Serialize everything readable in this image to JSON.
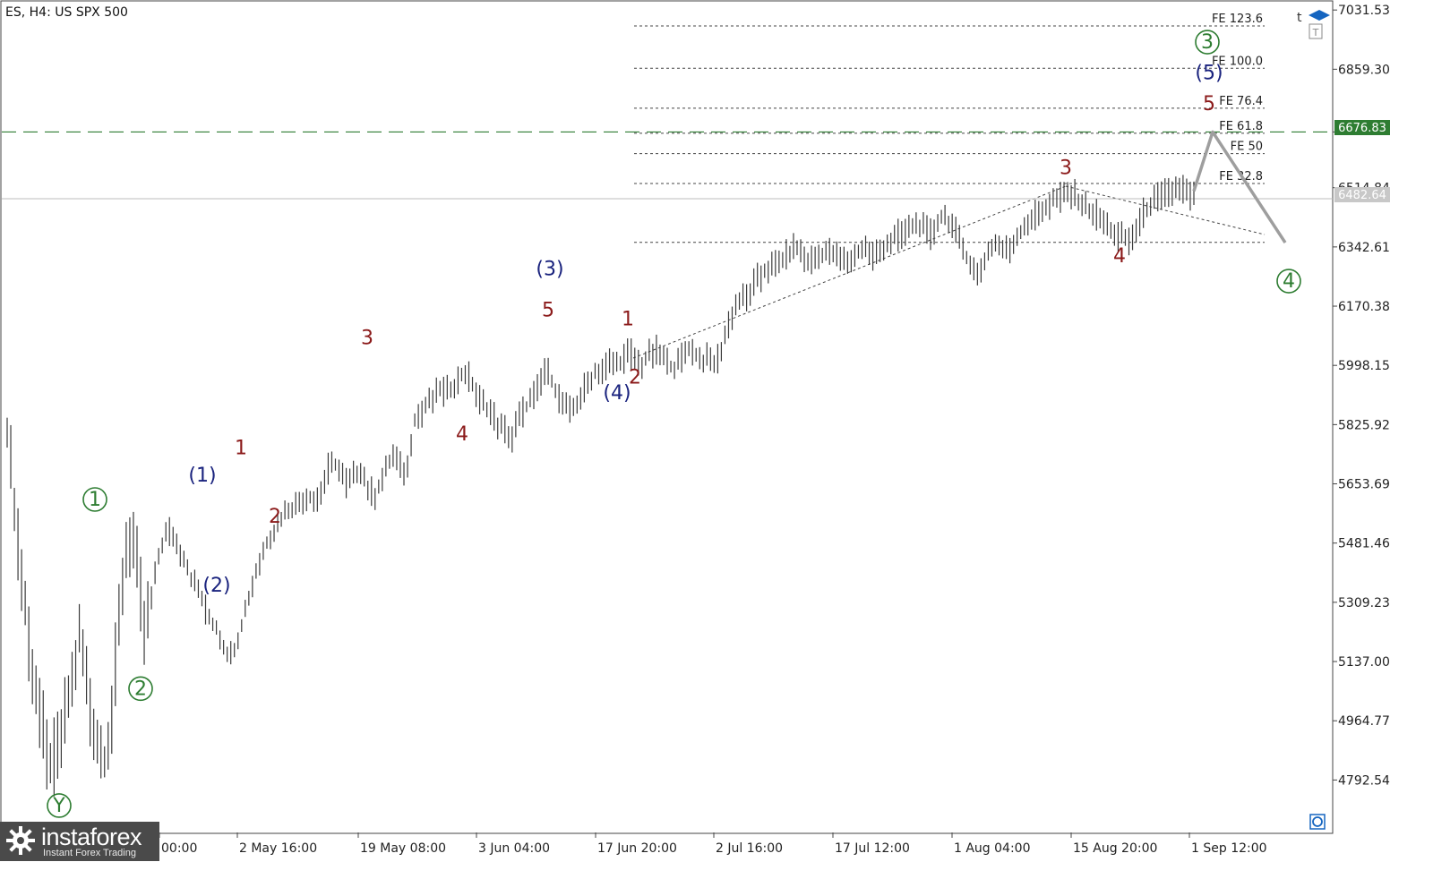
{
  "header": {
    "title": "ES, H4:  US SPX 500"
  },
  "price_labels": {
    "current": "6676.83",
    "last": "6482.64"
  },
  "brand": {
    "name": "instaforex",
    "tagline": "Instant Forex Trading"
  },
  "colors": {
    "grid_green": "#2e7d32",
    "wave_green": "#2e7d32",
    "wave_navy": "#1a237e",
    "wave_red": "#8b1a1a",
    "price_bar": "#3a3a3a",
    "projection": "#9e9e9e"
  },
  "chart_data": {
    "type": "line",
    "title": "ES, H4:  US SPX 500",
    "y_ticks": [
      7031.53,
      6859.3,
      6676.83,
      6514.84,
      6342.61,
      6170.38,
      5998.15,
      5825.92,
      5653.69,
      5481.46,
      5309.23,
      5137.0,
      4964.77,
      4792.54
    ],
    "y_tick_labels": [
      "7031.53",
      "6859.30",
      "6676.83",
      "6514.84",
      "6342.61",
      "6170.38",
      "5998.15",
      "5825.92",
      "5653.69",
      "5481.46",
      "5309.23",
      "5137.00",
      "4964.77",
      "4792.54"
    ],
    "ylim": [
      4640,
      7045
    ],
    "x_tick_labels": [
      "00:00",
      "2 May 16:00",
      "19 May 08:00",
      "3 Jun 04:00",
      "17 Jun 20:00",
      "2 Jul 16:00",
      "17 Jul 12:00",
      "1 Aug 04:00",
      "15 Aug 20:00",
      "1 Sep 12:00"
    ],
    "x_tick_index": [
      44,
      62,
      80,
      98,
      116,
      134,
      152,
      170,
      188,
      206
    ],
    "n_bars": 236,
    "price_series": [
      5810,
      5620,
      5430,
      5250,
      5100,
      5000,
      4860,
      4840,
      4900,
      4990,
      5080,
      5200,
      5100,
      4970,
      4880,
      4850,
      5000,
      5250,
      5460,
      5520,
      5380,
      5220,
      5320,
      5430,
      5500,
      5520,
      5470,
      5440,
      5380,
      5350,
      5300,
      5250,
      5230,
      5180,
      5150,
      5190,
      5260,
      5330,
      5400,
      5450,
      5500,
      5520,
      5560,
      5580,
      5590,
      5610,
      5620,
      5600,
      5640,
      5700,
      5710,
      5680,
      5650,
      5680,
      5700,
      5640,
      5620,
      5660,
      5700,
      5740,
      5700,
      5690,
      5840,
      5860,
      5880,
      5900,
      5930,
      5920,
      5940,
      5960,
      5980,
      5940,
      5900,
      5880,
      5860,
      5820,
      5810,
      5790,
      5850,
      5870,
      5900,
      5930,
      5990,
      5960,
      5910,
      5880,
      5860,
      5890,
      5930,
      5960,
      5980,
      5990,
      6010,
      6000,
      6020,
      6040,
      6010,
      6000,
      6030,
      6040,
      6020,
      6000,
      5990,
      6030,
      6050,
      6030,
      6010,
      6020,
      6000,
      6050,
      6120,
      6170,
      6190,
      6200,
      6240,
      6260,
      6280,
      6290,
      6300,
      6320,
      6340,
      6330,
      6300,
      6310,
      6320,
      6330,
      6320,
      6310,
      6300,
      6310,
      6330,
      6340,
      6320,
      6330,
      6350,
      6360,
      6380,
      6390,
      6400,
      6410,
      6390,
      6380,
      6420,
      6430,
      6410,
      6370,
      6330,
      6290,
      6260,
      6300,
      6340,
      6350,
      6330,
      6340,
      6370,
      6400,
      6420,
      6440,
      6450,
      6470,
      6480,
      6490,
      6500,
      6490,
      6470,
      6450,
      6440,
      6420,
      6400,
      6380,
      6370,
      6360,
      6390,
      6430,
      6460,
      6480,
      6490,
      6500,
      6510,
      6520,
      6500,
      6490
    ],
    "fe_levels": [
      {
        "label": "FE 123.6",
        "y": 6985
      },
      {
        "label": "FE 100.0",
        "y": 6862
      },
      {
        "label": "FE 76.4",
        "y": 6746
      },
      {
        "label": "FE 61.8",
        "y": 6673
      },
      {
        "label": "FE 50",
        "y": 6614
      },
      {
        "label": "FE 32.8",
        "y": 6527
      },
      {
        "label": "",
        "y": 6356
      }
    ],
    "resistance_level": 6676.83,
    "last_price": 6482.64,
    "wave_labels": [
      {
        "text": "Y",
        "i": 16,
        "y": 4700,
        "color": "green",
        "circled": true
      },
      {
        "text": "1",
        "i": 27,
        "y": 5590,
        "color": "green",
        "circled": true
      },
      {
        "text": "2",
        "i": 40,
        "y": 5040,
        "color": "green",
        "circled": true
      },
      {
        "text": "(1)",
        "i": 55,
        "y": 5660,
        "color": "navy"
      },
      {
        "text": "(2)",
        "i": 58,
        "y": 5340,
        "color": "navy"
      },
      {
        "text": "1",
        "i": 64,
        "y": 5740,
        "color": "red"
      },
      {
        "text": "2",
        "i": 73,
        "y": 5540,
        "color": "red"
      },
      {
        "text": "3",
        "i": 97,
        "y": 6060,
        "color": "red"
      },
      {
        "text": "4",
        "i": 125,
        "y": 5780,
        "color": "red"
      },
      {
        "text": "(3)",
        "i": 148,
        "y": 6260,
        "color": "navy"
      },
      {
        "text": "5",
        "i": 146,
        "y": 6140,
        "color": "red"
      },
      {
        "text": "1",
        "i": 169,
        "y": 6115,
        "color": "red"
      },
      {
        "text": "(4)",
        "i": 166,
        "y": 5900,
        "color": "navy"
      },
      {
        "text": "2",
        "i": 171,
        "y": 5945,
        "color": "red"
      },
      {
        "text": "3",
        "i": 294,
        "y": 6555,
        "color": "red"
      },
      {
        "text": "4",
        "i": 308,
        "y": 6298,
        "color": "red"
      },
      {
        "text": "5",
        "i": 336,
        "y": 6740,
        "color": "red"
      },
      {
        "text": "(5)",
        "i": 336,
        "y": 6830,
        "color": "navy"
      },
      {
        "text": "3",
        "i": 336,
        "y": 6920,
        "color": "green",
        "circled": true
      },
      {
        "text": "4",
        "i": 357,
        "y": 6225,
        "color": "green",
        "circled": true
      }
    ],
    "trendlines": [
      {
        "i1": 170,
        "y1": 5998,
        "i2": 294,
        "y2": 6515
      },
      {
        "i1": 294,
        "y1": 6515,
        "i2": 348,
        "y2": 6360
      }
    ],
    "projection": [
      {
        "i": 329,
        "y": 6505
      },
      {
        "i": 333,
        "y": 6676.83
      },
      {
        "i": 352,
        "y": 6355
      }
    ]
  }
}
